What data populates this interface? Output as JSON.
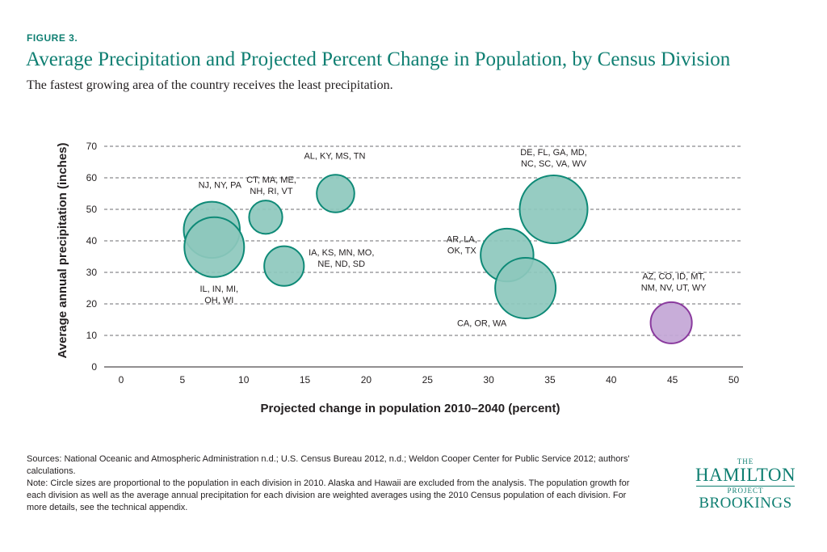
{
  "figure_label": "FIGURE 3.",
  "title": "Average Precipitation and Projected Percent Change in Population, by Census Division",
  "subtitle": "The fastest growing area of the country receives the least precipitation.",
  "chart_data": {
    "type": "scatter",
    "subtype": "bubble",
    "xlabel": "Projected change in population 2010–2040 (percent)",
    "ylabel": "Average annual precipitation (inches)",
    "xlim": [
      0,
      50
    ],
    "ylim": [
      0,
      70
    ],
    "xticks": [
      0,
      5,
      10,
      15,
      20,
      25,
      30,
      35,
      40,
      45,
      50
    ],
    "yticks": [
      0,
      10,
      20,
      30,
      40,
      50,
      60,
      70
    ],
    "grid": "horizontal-dashed",
    "colors": {
      "default": "#8dc8bd",
      "stroke": "#0e8a77",
      "highlight": "#c3a6d6",
      "highlight_stroke": "#8a3a9e"
    },
    "points": [
      {
        "label": [
          "NJ, NY, PA"
        ],
        "x": 7.4,
        "y": 43.5,
        "size_pop_millions": 40.9
      },
      {
        "label": [
          "IL, IN, MI,",
          "OH, WI"
        ],
        "x": 7.6,
        "y": 38.0,
        "size_pop_millions": 46.4
      },
      {
        "label": [
          "CT, MA, ME,",
          "NH, RI, VT"
        ],
        "x": 11.8,
        "y": 47.5,
        "size_pop_millions": 14.4
      },
      {
        "label": [
          "IA, KS, MN, MO,",
          "NE, ND, SD"
        ],
        "x": 13.3,
        "y": 32.0,
        "size_pop_millions": 20.5
      },
      {
        "label": [
          "AL, KY, MS, TN"
        ],
        "x": 17.5,
        "y": 55.0,
        "size_pop_millions": 18.4
      },
      {
        "label": [
          "AR, LA,",
          "OK, TX"
        ],
        "x": 31.5,
        "y": 35.5,
        "size_pop_millions": 36.3
      },
      {
        "label": [
          "CA, OR, WA"
        ],
        "x": 33.0,
        "y": 25.0,
        "size_pop_millions": 47.7
      },
      {
        "label": [
          "DE, FL, GA, MD,",
          "NC, SC, VA, WV"
        ],
        "x": 35.3,
        "y": 50.0,
        "size_pop_millions": 59.8
      },
      {
        "label": [
          "AZ, CO, ID, MT,",
          "NM, NV, UT, WY"
        ],
        "x": 44.9,
        "y": 14.0,
        "size_pop_millions": 22.1,
        "highlight": true
      }
    ]
  },
  "notes": {
    "sources": "Sources: National Oceanic and Atmospheric Administration n.d.; U.S. Census Bureau 2012, n.d.; Weldon Cooper Center for Public Service 2012; authors' calculations.",
    "note": "Note: Circle sizes are proportional to the population in each division in 2010. Alaska and Hawaii are excluded from the analysis. The population growth for each division as well as the average annual precipitation for each division are weighted averages using the 2010 Census population of each division. For more details, see the technical appendix."
  },
  "logos": {
    "hamilton_the": "THE",
    "hamilton_main": "HAMILTON",
    "hamilton_project": "PROJECT",
    "brookings": "BROOKINGS"
  }
}
